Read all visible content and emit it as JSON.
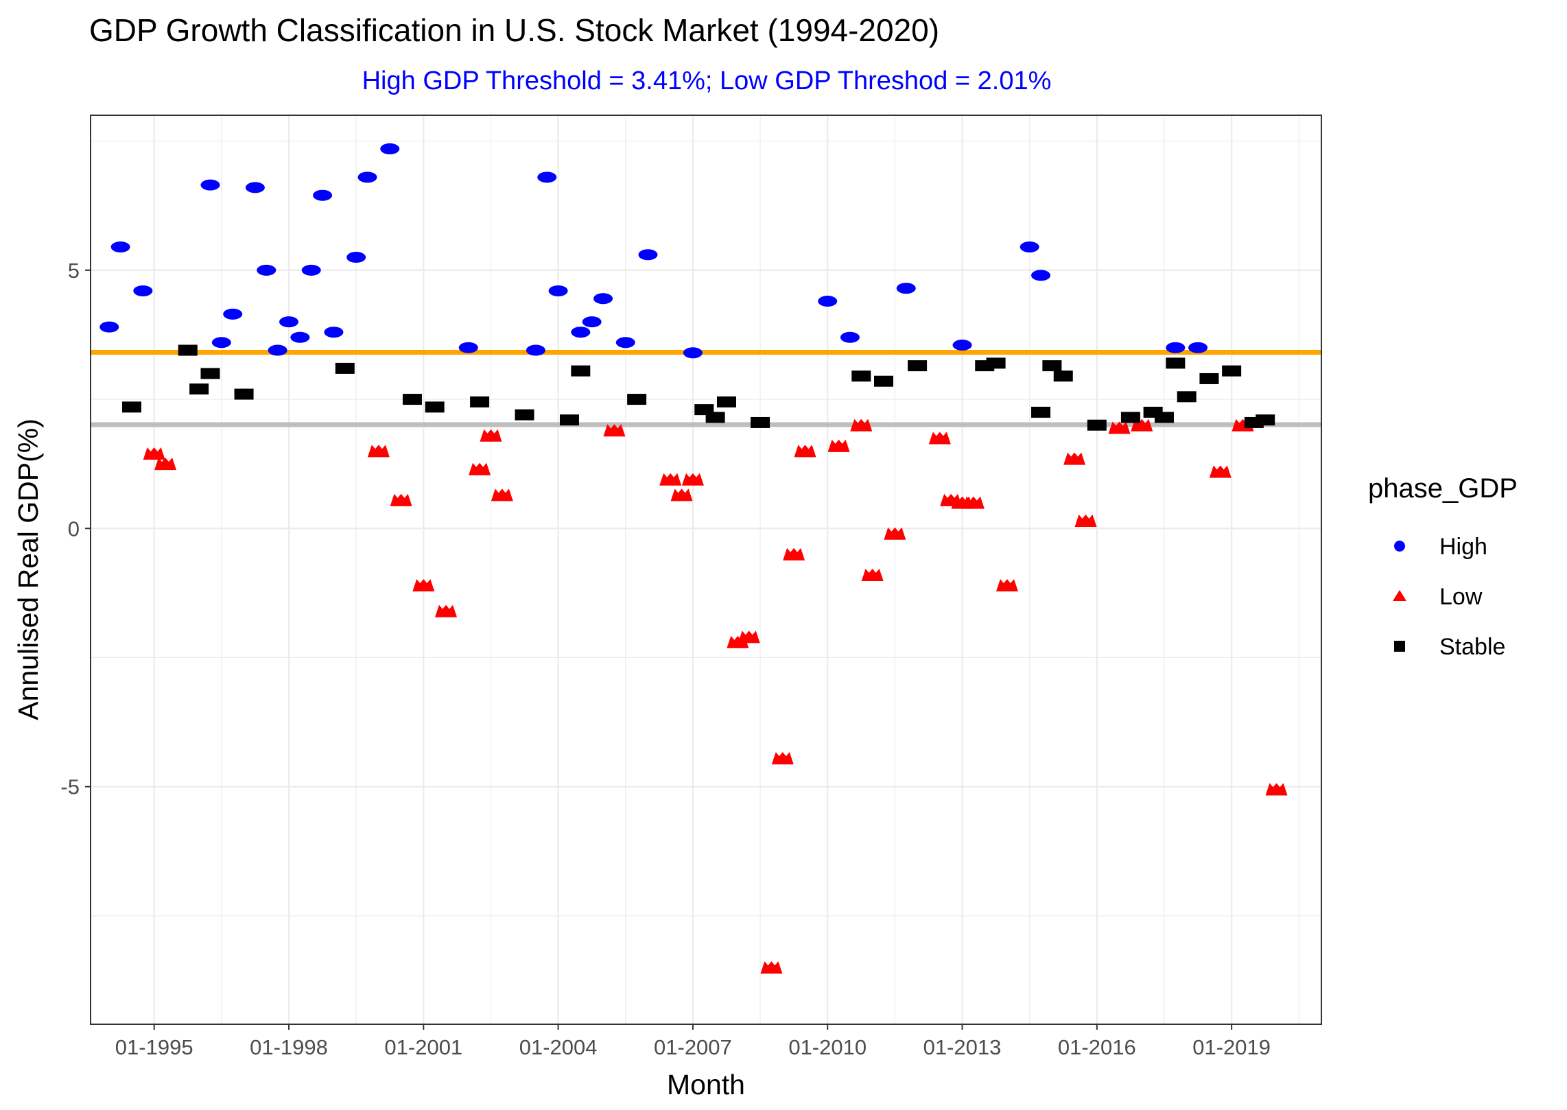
{
  "chart_data": {
    "type": "scatter",
    "title": "GDP Growth Classification in U.S. Stock Market (1994-2020)",
    "subtitle": "High GDP Threshold = 3.41%; Low GDP Threshod = 2.01%",
    "xlabel": "Month",
    "ylabel": "Annulised Real GDP(%)",
    "x_ticks": [
      "01-1995",
      "01-1998",
      "01-2001",
      "01-2004",
      "01-2007",
      "01-2010",
      "01-2013",
      "01-2016",
      "01-2019"
    ],
    "y_ticks": [
      "-5",
      "0",
      "5"
    ],
    "xlim": [
      "1993-08",
      "2021-01"
    ],
    "ylim": [
      -9.6,
      8.0
    ],
    "grid": true,
    "legend": {
      "title": "phase_GDP",
      "position": "right"
    },
    "thresholds": [
      {
        "label": "High GDP Threshold",
        "value": 3.41,
        "color": "#FFA500"
      },
      {
        "label": "Low GDP Threshod",
        "value": 2.01,
        "color": "#BEBEBE"
      }
    ],
    "series": [
      {
        "name": "High",
        "shape": "circle",
        "color": "#0000FF",
        "points": [
          [
            "1994-01",
            3.9
          ],
          [
            "1994-04",
            5.45
          ],
          [
            "1994-10",
            4.6
          ],
          [
            "1996-04",
            6.65
          ],
          [
            "1996-07",
            3.6
          ],
          [
            "1996-10",
            4.15
          ],
          [
            "1997-04",
            6.6
          ],
          [
            "1997-07",
            5.0
          ],
          [
            "1997-10",
            3.45
          ],
          [
            "1998-01",
            4.0
          ],
          [
            "1998-04",
            3.7
          ],
          [
            "1998-07",
            5.0
          ],
          [
            "1998-10",
            6.45
          ],
          [
            "1999-01",
            3.8
          ],
          [
            "1999-07",
            5.25
          ],
          [
            "1999-10",
            6.8
          ],
          [
            "2000-04",
            7.35
          ],
          [
            "2002-01",
            3.5
          ],
          [
            "2003-07",
            3.45
          ],
          [
            "2003-10",
            6.8
          ],
          [
            "2004-01",
            4.6
          ],
          [
            "2004-07",
            3.8
          ],
          [
            "2004-10",
            4.0
          ],
          [
            "2005-01",
            4.45
          ],
          [
            "2005-07",
            3.6
          ],
          [
            "2006-01",
            5.3
          ],
          [
            "2007-01",
            3.4
          ],
          [
            "2010-01",
            4.4
          ],
          [
            "2010-07",
            3.7
          ],
          [
            "2011-10",
            4.65
          ],
          [
            "2013-01",
            3.55
          ],
          [
            "2014-07",
            5.45
          ],
          [
            "2014-10",
            4.9
          ],
          [
            "2017-10",
            3.5
          ],
          [
            "2018-04",
            3.5
          ]
        ]
      },
      {
        "name": "Low",
        "shape": "triangle",
        "color": "#FF0000",
        "points": [
          [
            "1995-01",
            1.45
          ],
          [
            "1995-04",
            1.25
          ],
          [
            "2000-01",
            1.5
          ],
          [
            "2000-07",
            0.55
          ],
          [
            "2001-01",
            -1.1
          ],
          [
            "2001-07",
            -1.6
          ],
          [
            "2002-04",
            1.15
          ],
          [
            "2002-07",
            1.8
          ],
          [
            "2002-10",
            0.65
          ],
          [
            "2005-04",
            1.9
          ],
          [
            "2006-07",
            0.95
          ],
          [
            "2006-10",
            0.65
          ],
          [
            "2007-01",
            0.95
          ],
          [
            "2008-01",
            -2.2
          ],
          [
            "2008-04",
            -2.1
          ],
          [
            "2008-10",
            -8.5
          ],
          [
            "2009-01",
            -4.45
          ],
          [
            "2009-04",
            -0.5
          ],
          [
            "2009-07",
            1.5
          ],
          [
            "2010-04",
            1.6
          ],
          [
            "2010-10",
            2.0
          ],
          [
            "2011-01",
            -0.9
          ],
          [
            "2011-07",
            -0.1
          ],
          [
            "2012-07",
            1.75
          ],
          [
            "2012-10",
            0.55
          ],
          [
            "2013-01",
            0.5
          ],
          [
            "2013-04",
            0.5
          ],
          [
            "2014-01",
            -1.1
          ],
          [
            "2015-07",
            1.35
          ],
          [
            "2015-10",
            0.15
          ],
          [
            "2016-07",
            1.95
          ],
          [
            "2017-01",
            2.0
          ],
          [
            "2018-10",
            1.1
          ],
          [
            "2019-04",
            2.0
          ],
          [
            "2020-01",
            -5.05
          ]
        ]
      },
      {
        "name": "Stable",
        "shape": "square",
        "color": "#000000",
        "points": [
          [
            "1994-07",
            2.35
          ],
          [
            "1995-10",
            3.45
          ],
          [
            "1996-01",
            2.7
          ],
          [
            "1996-04",
            3.0
          ],
          [
            "1997-01",
            2.6
          ],
          [
            "1999-04",
            3.1
          ],
          [
            "2000-10",
            2.5
          ],
          [
            "2001-04",
            2.35
          ],
          [
            "2002-04",
            2.45
          ],
          [
            "2003-04",
            2.2
          ],
          [
            "2004-04",
            2.1
          ],
          [
            "2004-07",
            3.05
          ],
          [
            "2005-10",
            2.5
          ],
          [
            "2007-04",
            2.3
          ],
          [
            "2007-07",
            2.15
          ],
          [
            "2007-10",
            2.45
          ],
          [
            "2008-07",
            2.05
          ],
          [
            "2010-10",
            2.95
          ],
          [
            "2011-04",
            2.85
          ],
          [
            "2012-01",
            3.15
          ],
          [
            "2013-07",
            3.15
          ],
          [
            "2013-10",
            3.2
          ],
          [
            "2014-10",
            2.25
          ],
          [
            "2015-01",
            3.15
          ],
          [
            "2015-04",
            2.95
          ],
          [
            "2016-01",
            2.0
          ],
          [
            "2016-10",
            2.15
          ],
          [
            "2017-04",
            2.25
          ],
          [
            "2017-07",
            2.15
          ],
          [
            "2017-10",
            3.2
          ],
          [
            "2018-01",
            2.55
          ],
          [
            "2018-07",
            2.9
          ],
          [
            "2019-01",
            3.05
          ],
          [
            "2019-07",
            2.05
          ],
          [
            "2019-10",
            2.1
          ]
        ]
      }
    ]
  }
}
